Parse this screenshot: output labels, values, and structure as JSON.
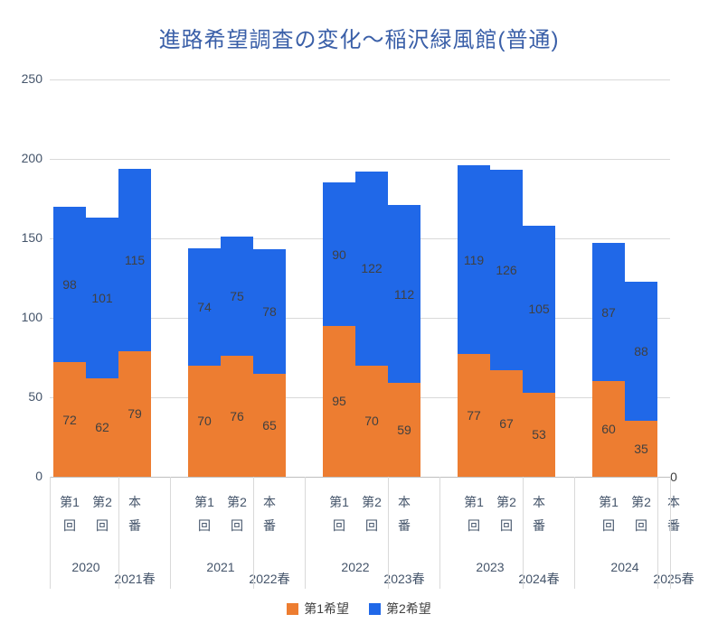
{
  "title": "進路希望調査の変化〜稲沢緑風館(普通)",
  "colors": {
    "series1": "#ED7D31",
    "series2": "#2068E8",
    "gridline": "#D9D9D9",
    "axis_line": "#BFBFBF",
    "title_text": "#3A5FA8",
    "axis_text": "#44546A",
    "data_label_text": "#404040",
    "legend_text": "#404040"
  },
  "legend": {
    "items": [
      {
        "label": "第1希望",
        "color_key": "series1"
      },
      {
        "label": "第2希望",
        "color_key": "series2"
      }
    ]
  },
  "chart_data": {
    "type": "bar",
    "stacked": true,
    "title": "進路希望調査の変化〜稲沢緑風館(普通)",
    "xlabel": "",
    "ylabel": "",
    "ylim": [
      0,
      250
    ],
    "yticks": [
      0,
      50,
      100,
      150,
      200,
      250
    ],
    "grid": true,
    "legend_position": "bottom",
    "series_names": [
      "第1希望",
      "第2希望"
    ],
    "sub_category_labels": [
      [
        "第1",
        "回"
      ],
      [
        "第2",
        "回"
      ],
      [
        "本",
        "番"
      ]
    ],
    "groups": [
      {
        "outer_labels": [
          "2020",
          "2021春"
        ],
        "series1": [
          72,
          62,
          79
        ],
        "series2": [
          98,
          101,
          115
        ]
      },
      {
        "outer_labels": [
          "2021",
          "2022春"
        ],
        "series1": [
          70,
          76,
          65
        ],
        "series2": [
          74,
          75,
          78
        ]
      },
      {
        "outer_labels": [
          "2022",
          "2023春"
        ],
        "series1": [
          95,
          70,
          59
        ],
        "series2": [
          90,
          122,
          112
        ]
      },
      {
        "outer_labels": [
          "2023",
          "2024春"
        ],
        "series1": [
          77,
          67,
          53
        ],
        "series2": [
          119,
          126,
          105
        ]
      },
      {
        "outer_labels": [
          "2024",
          "2025春"
        ],
        "series1": [
          60,
          35,
          0
        ],
        "series2": [
          87,
          88,
          null
        ]
      }
    ]
  }
}
